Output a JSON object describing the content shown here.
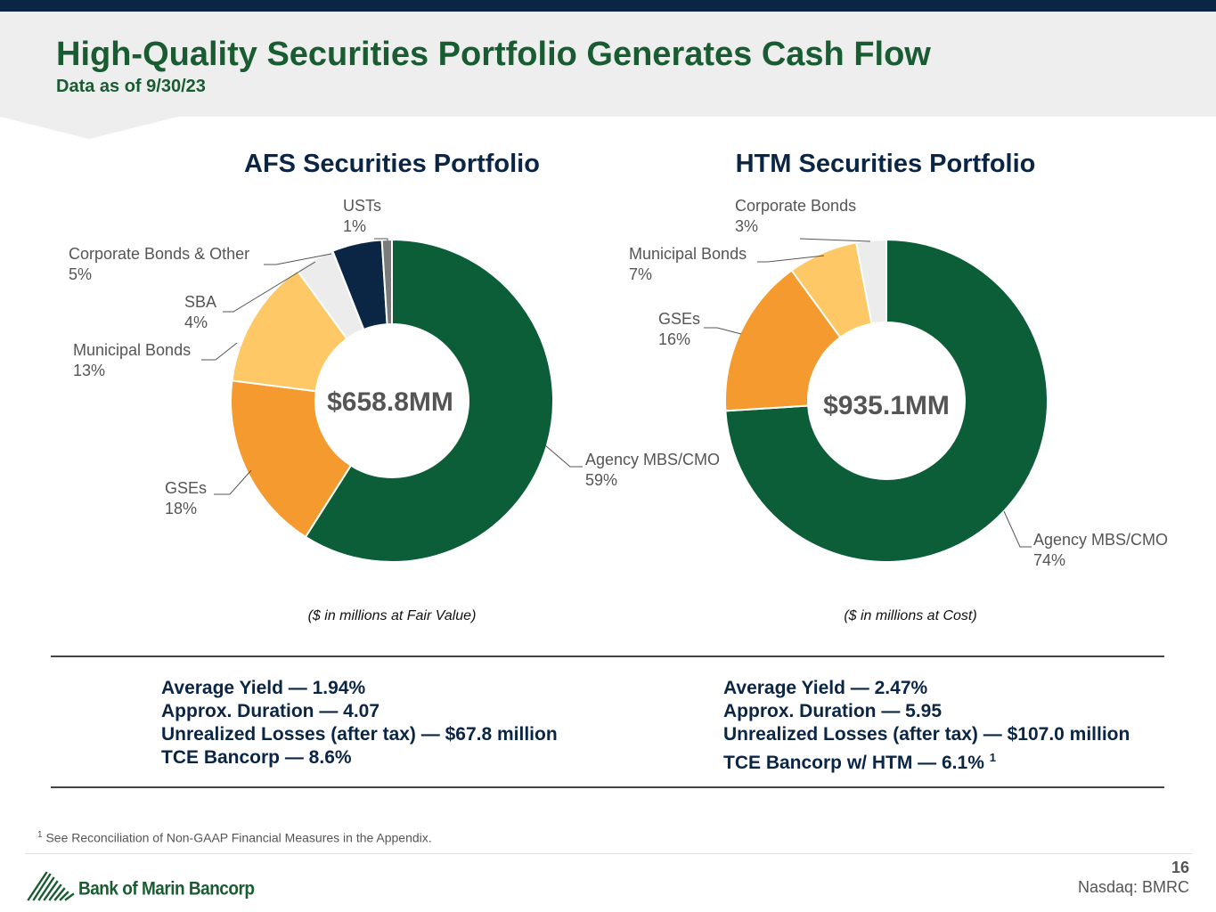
{
  "header": {
    "title": "High-Quality Securities Portfolio Generates Cash Flow",
    "subtitle": "Data as of 9/30/23"
  },
  "chart_data": [
    {
      "type": "pie",
      "variant": "donut",
      "title": "AFS Securities Portfolio",
      "center_label": "$658.8MM",
      "note": "($ in millions at Fair Value)",
      "slices": [
        {
          "label": "Agency MBS/CMO",
          "pct_label": "59%",
          "value": 59,
          "color": "#0b5e38"
        },
        {
          "label": "GSEs",
          "pct_label": "18%",
          "value": 18,
          "color": "#f49a2e"
        },
        {
          "label": "Municipal Bonds",
          "pct_label": "13%",
          "value": 13,
          "color": "#fdc865"
        },
        {
          "label": "SBA",
          "pct_label": "4%",
          "value": 4,
          "color": "#ececec"
        },
        {
          "label": "Corporate Bonds & Other",
          "pct_label": "5%",
          "value": 5,
          "color": "#0b2545"
        },
        {
          "label": "USTs",
          "pct_label": "1%",
          "value": 1,
          "color": "#7a7a7a"
        }
      ]
    },
    {
      "type": "pie",
      "variant": "donut",
      "title": "HTM Securities Portfolio",
      "center_label": "$935.1MM",
      "note": "($ in millions at Cost)",
      "slices": [
        {
          "label": "Agency MBS/CMO",
          "pct_label": "74%",
          "value": 74,
          "color": "#0b5e38"
        },
        {
          "label": "GSEs",
          "pct_label": "16%",
          "value": 16,
          "color": "#f49a2e"
        },
        {
          "label": "Municipal Bonds",
          "pct_label": "7%",
          "value": 7,
          "color": "#fdc865"
        },
        {
          "label": "Corporate Bonds",
          "pct_label": "3%",
          "value": 3,
          "color": "#ececec"
        }
      ]
    }
  ],
  "metrics": {
    "afs": {
      "yield": "Average Yield — 1.94%",
      "duration": "Approx. Duration — 4.07",
      "losses": "Unrealized Losses (after tax) — $67.8 million",
      "tce": "TCE Bancorp — 8.6%"
    },
    "htm": {
      "yield": "Average Yield — 2.47%",
      "duration": "Approx. Duration — 5.95",
      "losses": "Unrealized Losses (after tax) — $107.0 million",
      "tce": "TCE Bancorp w/ HTM — 6.1%",
      "tce_sup": "1"
    }
  },
  "footnote": {
    "marker": "1",
    "text": "See Reconciliation of Non-GAAP Financial Measures in the Appendix."
  },
  "footer": {
    "logo_text": "Bank of Marin Bancorp",
    "page_number": "16",
    "ticker": "Nasdaq: BMRC"
  }
}
